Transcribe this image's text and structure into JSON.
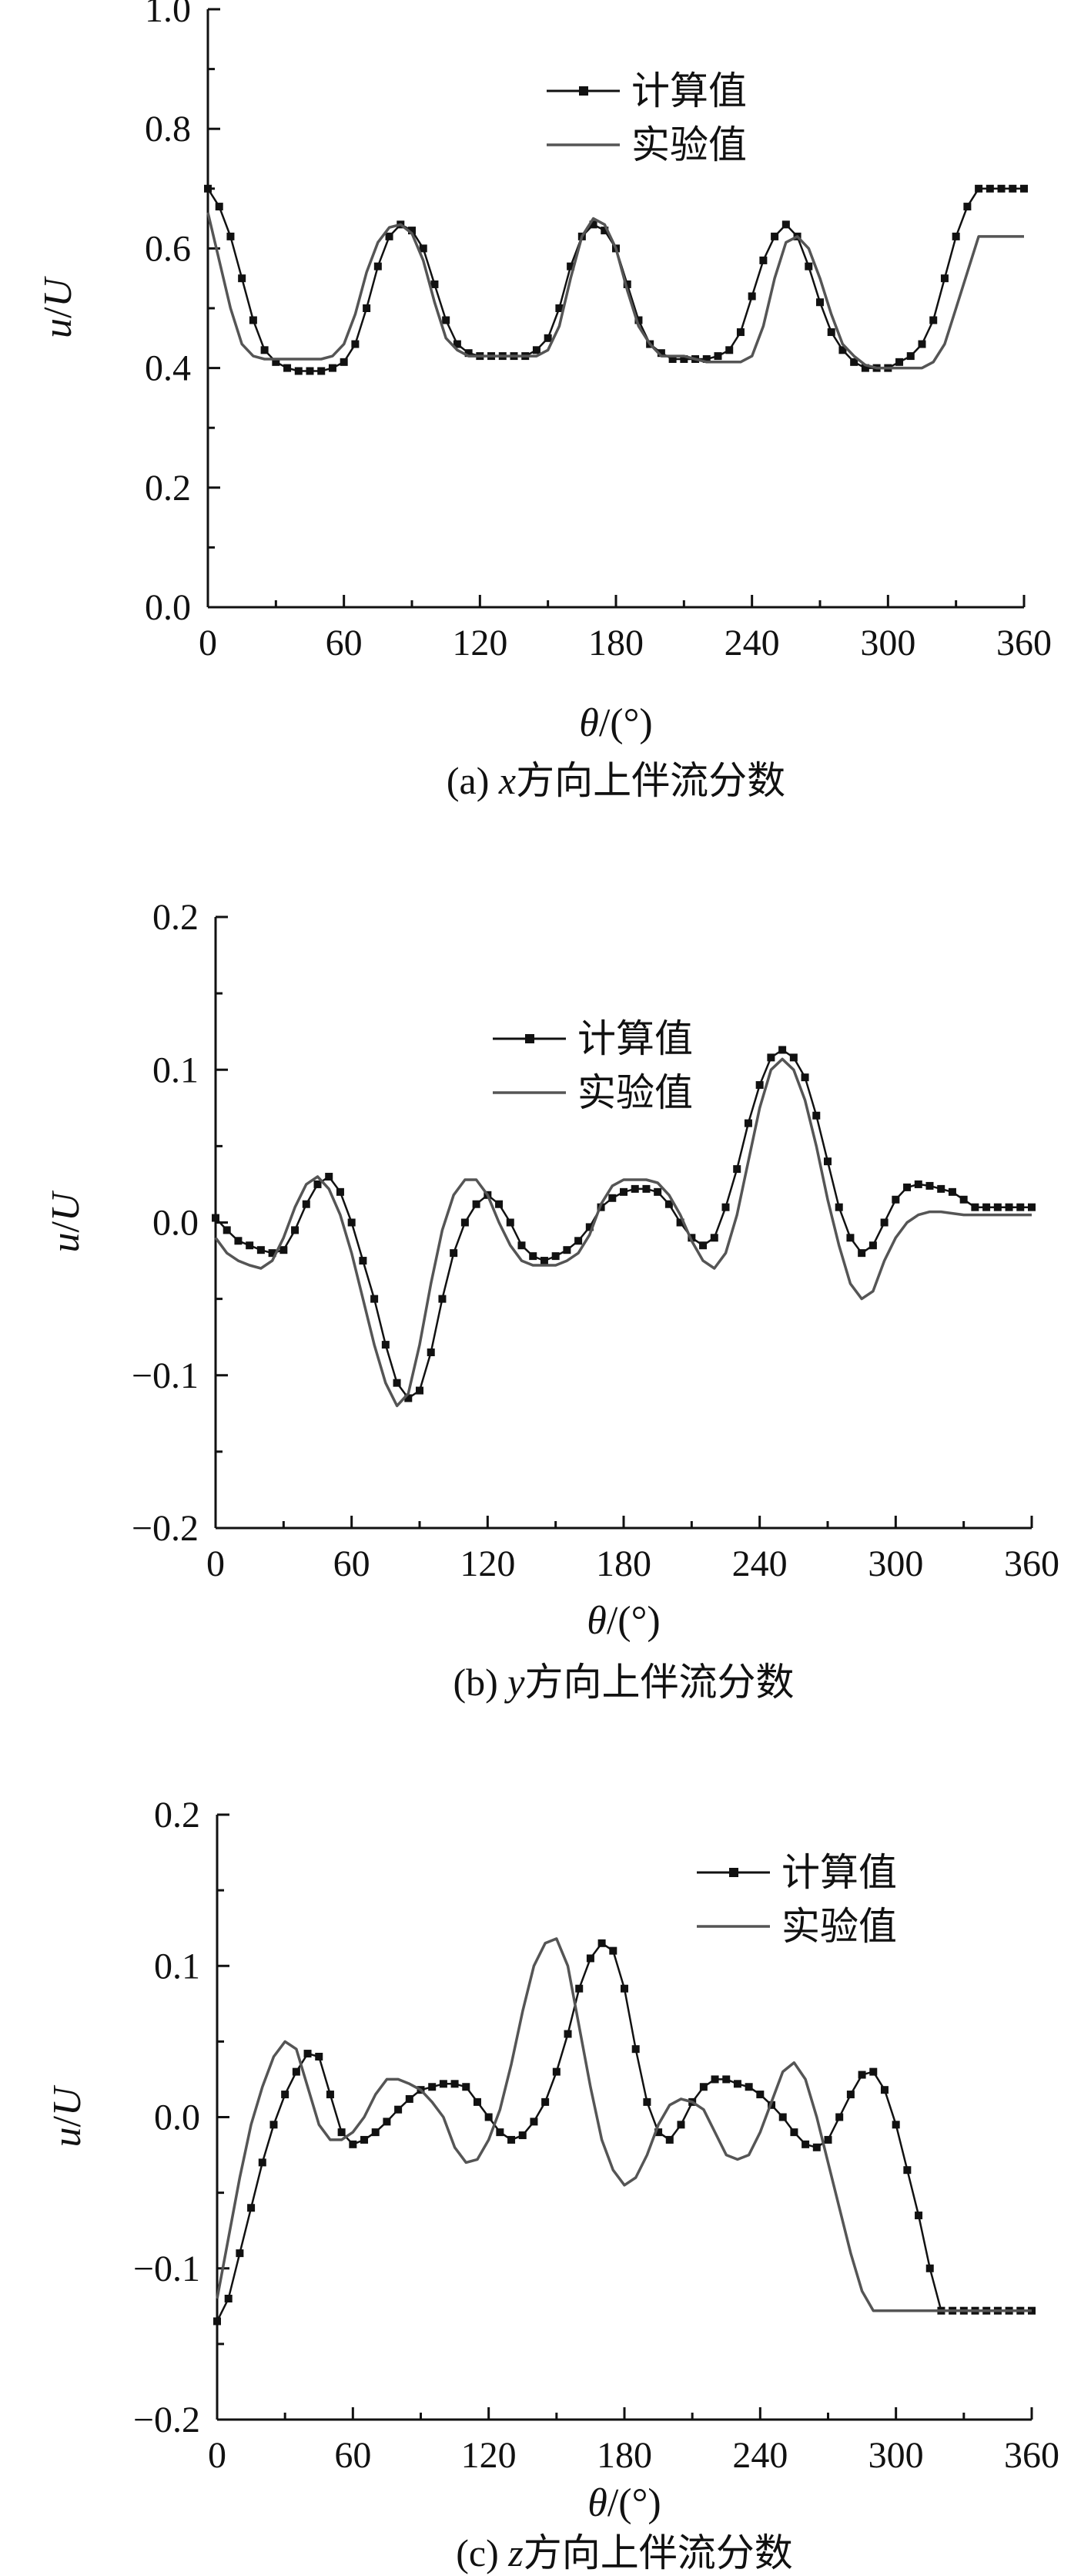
{
  "figure": {
    "background": "#ffffff"
  },
  "chart_data": [
    {
      "type": "line",
      "caption": {
        "label": "(a)",
        "var": "x",
        "text": "方向上伴流分数"
      },
      "xlabel": {
        "sym": "θ",
        "unit": "/(°)"
      },
      "ylabel": {
        "a": "u",
        "sep": "/",
        "b": "U"
      },
      "xlim": [
        0,
        360
      ],
      "ylim": [
        0,
        1.0
      ],
      "xticks": [
        0,
        60,
        120,
        180,
        240,
        300,
        360
      ],
      "yticks": [
        0,
        0.2,
        0.4,
        0.6,
        0.8,
        1.0
      ],
      "ytick_labels": [
        "0.0",
        "0.2",
        "0.4",
        "0.6",
        "0.8",
        "1.0"
      ],
      "legend_position": "top-center",
      "series": [
        {
          "name": "计算值",
          "style": "line-square-markers",
          "color": "#111111",
          "x": [
            0,
            5,
            10,
            15,
            20,
            25,
            30,
            35,
            40,
            45,
            50,
            55,
            60,
            65,
            70,
            75,
            80,
            85,
            90,
            95,
            100,
            105,
            110,
            115,
            120,
            125,
            130,
            135,
            140,
            145,
            150,
            155,
            160,
            165,
            170,
            175,
            180,
            185,
            190,
            195,
            200,
            205,
            210,
            215,
            220,
            225,
            230,
            235,
            240,
            245,
            250,
            255,
            260,
            265,
            270,
            275,
            280,
            285,
            290,
            295,
            300,
            305,
            310,
            315,
            320,
            325,
            330,
            335,
            340,
            345,
            350,
            355,
            360
          ],
          "y": [
            0.7,
            0.67,
            0.62,
            0.55,
            0.48,
            0.43,
            0.41,
            0.4,
            0.395,
            0.395,
            0.395,
            0.4,
            0.41,
            0.44,
            0.5,
            0.57,
            0.62,
            0.64,
            0.63,
            0.6,
            0.54,
            0.48,
            0.44,
            0.425,
            0.42,
            0.42,
            0.42,
            0.42,
            0.42,
            0.43,
            0.45,
            0.5,
            0.57,
            0.62,
            0.64,
            0.63,
            0.6,
            0.54,
            0.48,
            0.44,
            0.425,
            0.415,
            0.415,
            0.415,
            0.415,
            0.42,
            0.43,
            0.46,
            0.52,
            0.58,
            0.62,
            0.64,
            0.62,
            0.57,
            0.51,
            0.46,
            0.43,
            0.41,
            0.4,
            0.4,
            0.4,
            0.41,
            0.42,
            0.44,
            0.48,
            0.55,
            0.62,
            0.67,
            0.7,
            0.7,
            0.7,
            0.7,
            0.7
          ]
        },
        {
          "name": "实验值",
          "style": "line",
          "color": "#555555",
          "x": [
            0,
            5,
            10,
            15,
            20,
            25,
            30,
            35,
            40,
            45,
            50,
            55,
            60,
            65,
            70,
            75,
            80,
            85,
            90,
            95,
            100,
            105,
            110,
            115,
            120,
            125,
            130,
            135,
            140,
            145,
            150,
            155,
            160,
            165,
            170,
            175,
            180,
            185,
            190,
            195,
            200,
            205,
            210,
            215,
            220,
            225,
            230,
            235,
            240,
            245,
            250,
            255,
            260,
            265,
            270,
            275,
            280,
            285,
            290,
            295,
            300,
            305,
            310,
            315,
            320,
            325,
            330,
            335,
            340,
            345,
            350,
            355,
            360
          ],
          "y": [
            0.66,
            0.58,
            0.5,
            0.44,
            0.42,
            0.415,
            0.415,
            0.415,
            0.415,
            0.415,
            0.415,
            0.42,
            0.44,
            0.49,
            0.56,
            0.61,
            0.635,
            0.64,
            0.625,
            0.58,
            0.51,
            0.45,
            0.43,
            0.42,
            0.42,
            0.42,
            0.42,
            0.42,
            0.42,
            0.42,
            0.43,
            0.47,
            0.55,
            0.62,
            0.65,
            0.64,
            0.6,
            0.53,
            0.47,
            0.44,
            0.42,
            0.42,
            0.42,
            0.415,
            0.41,
            0.41,
            0.41,
            0.41,
            0.42,
            0.47,
            0.55,
            0.61,
            0.62,
            0.6,
            0.55,
            0.49,
            0.44,
            0.42,
            0.405,
            0.4,
            0.4,
            0.4,
            0.4,
            0.4,
            0.41,
            0.44,
            0.5,
            0.56,
            0.62,
            0.62,
            0.62,
            0.62,
            0.62
          ]
        }
      ]
    },
    {
      "type": "line",
      "caption": {
        "label": "(b)",
        "var": "y",
        "text": "方向上伴流分数"
      },
      "xlabel": {
        "sym": "θ",
        "unit": "/(°)"
      },
      "ylabel": {
        "a": "u",
        "sep": "/",
        "b": "U"
      },
      "xlim": [
        0,
        360
      ],
      "ylim": [
        -0.2,
        0.2
      ],
      "xticks": [
        0,
        60,
        120,
        180,
        240,
        300,
        360
      ],
      "yticks": [
        -0.2,
        -0.1,
        0,
        0.1,
        0.2
      ],
      "ytick_labels": [
        "−0.2",
        "−0.1",
        "0.0",
        "0.1",
        "0.2"
      ],
      "legend_position": "top-center",
      "series": [
        {
          "name": "计算值",
          "style": "line-square-markers",
          "color": "#111111",
          "x": [
            0,
            5,
            10,
            15,
            20,
            25,
            30,
            35,
            40,
            45,
            50,
            55,
            60,
            65,
            70,
            75,
            80,
            85,
            90,
            95,
            100,
            105,
            110,
            115,
            120,
            125,
            130,
            135,
            140,
            145,
            150,
            155,
            160,
            165,
            170,
            175,
            180,
            185,
            190,
            195,
            200,
            205,
            210,
            215,
            220,
            225,
            230,
            235,
            240,
            245,
            250,
            255,
            260,
            265,
            270,
            275,
            280,
            285,
            290,
            295,
            300,
            305,
            310,
            315,
            320,
            325,
            330,
            335,
            340,
            345,
            350,
            355,
            360
          ],
          "y": [
            0.003,
            -0.005,
            -0.012,
            -0.015,
            -0.018,
            -0.02,
            -0.018,
            -0.005,
            0.012,
            0.025,
            0.03,
            0.02,
            0.0,
            -0.025,
            -0.05,
            -0.08,
            -0.105,
            -0.115,
            -0.11,
            -0.085,
            -0.05,
            -0.02,
            0.0,
            0.012,
            0.018,
            0.012,
            0.0,
            -0.015,
            -0.022,
            -0.025,
            -0.022,
            -0.018,
            -0.012,
            -0.003,
            0.01,
            0.016,
            0.02,
            0.022,
            0.022,
            0.02,
            0.012,
            0.0,
            -0.01,
            -0.015,
            -0.01,
            0.01,
            0.035,
            0.065,
            0.09,
            0.108,
            0.113,
            0.108,
            0.095,
            0.07,
            0.04,
            0.01,
            -0.01,
            -0.02,
            -0.015,
            0.0,
            0.015,
            0.023,
            0.025,
            0.024,
            0.022,
            0.02,
            0.015,
            0.01,
            0.01,
            0.01,
            0.01,
            0.01,
            0.01
          ]
        },
        {
          "name": "实验值",
          "style": "line",
          "color": "#555555",
          "x": [
            0,
            5,
            10,
            15,
            20,
            25,
            30,
            35,
            40,
            45,
            50,
            55,
            60,
            65,
            70,
            75,
            80,
            85,
            90,
            95,
            100,
            105,
            110,
            115,
            120,
            125,
            130,
            135,
            140,
            145,
            150,
            155,
            160,
            165,
            170,
            175,
            180,
            185,
            190,
            195,
            200,
            205,
            210,
            215,
            220,
            225,
            230,
            235,
            240,
            245,
            250,
            255,
            260,
            265,
            270,
            275,
            280,
            285,
            290,
            295,
            300,
            305,
            310,
            315,
            320,
            325,
            330,
            335,
            340,
            345,
            350,
            355,
            360
          ],
          "y": [
            -0.01,
            -0.02,
            -0.025,
            -0.028,
            -0.03,
            -0.025,
            -0.01,
            0.01,
            0.025,
            0.03,
            0.022,
            0.005,
            -0.02,
            -0.05,
            -0.08,
            -0.105,
            -0.12,
            -0.112,
            -0.08,
            -0.04,
            -0.005,
            0.018,
            0.028,
            0.028,
            0.018,
            0.0,
            -0.015,
            -0.025,
            -0.028,
            -0.028,
            -0.028,
            -0.025,
            -0.02,
            -0.008,
            0.012,
            0.024,
            0.028,
            0.028,
            0.028,
            0.026,
            0.018,
            0.005,
            -0.012,
            -0.025,
            -0.03,
            -0.02,
            0.005,
            0.04,
            0.075,
            0.1,
            0.107,
            0.1,
            0.08,
            0.05,
            0.015,
            -0.015,
            -0.04,
            -0.05,
            -0.045,
            -0.025,
            -0.01,
            0.0,
            0.005,
            0.007,
            0.007,
            0.006,
            0.005,
            0.005,
            0.005,
            0.005,
            0.005,
            0.005,
            0.005
          ]
        }
      ]
    },
    {
      "type": "line",
      "caption": {
        "label": "(c)",
        "var": "z",
        "text": "方向上伴流分数"
      },
      "xlabel": {
        "sym": "θ",
        "unit": "/(°)"
      },
      "ylabel": {
        "a": "u",
        "sep": "/",
        "b": "U"
      },
      "xlim": [
        0,
        360
      ],
      "ylim": [
        -0.2,
        0.2
      ],
      "xticks": [
        0,
        60,
        120,
        180,
        240,
        300,
        360
      ],
      "yticks": [
        -0.2,
        -0.1,
        0,
        0.1,
        0.2
      ],
      "ytick_labels": [
        "−0.2",
        "−0.1",
        "0.0",
        "0.1",
        "0.2"
      ],
      "legend_position": "top-right",
      "series": [
        {
          "name": "计算值",
          "style": "line-square-markers",
          "color": "#111111",
          "x": [
            0,
            5,
            10,
            15,
            20,
            25,
            30,
            35,
            40,
            45,
            50,
            55,
            60,
            65,
            70,
            75,
            80,
            85,
            90,
            95,
            100,
            105,
            110,
            115,
            120,
            125,
            130,
            135,
            140,
            145,
            150,
            155,
            160,
            165,
            170,
            175,
            180,
            185,
            190,
            195,
            200,
            205,
            210,
            215,
            220,
            225,
            230,
            235,
            240,
            245,
            250,
            255,
            260,
            265,
            270,
            275,
            280,
            285,
            290,
            295,
            300,
            305,
            310,
            315,
            320,
            325,
            330,
            335,
            340,
            345,
            350,
            355,
            360
          ],
          "y": [
            -0.135,
            -0.12,
            -0.09,
            -0.06,
            -0.03,
            -0.005,
            0.015,
            0.03,
            0.042,
            0.04,
            0.015,
            -0.01,
            -0.018,
            -0.015,
            -0.01,
            -0.003,
            0.005,
            0.012,
            0.018,
            0.02,
            0.022,
            0.022,
            0.02,
            0.01,
            0.0,
            -0.01,
            -0.015,
            -0.012,
            -0.003,
            0.01,
            0.03,
            0.055,
            0.085,
            0.105,
            0.115,
            0.11,
            0.085,
            0.045,
            0.01,
            -0.01,
            -0.015,
            -0.005,
            0.01,
            0.02,
            0.025,
            0.025,
            0.022,
            0.02,
            0.015,
            0.008,
            0.0,
            -0.01,
            -0.018,
            -0.02,
            -0.015,
            0.0,
            0.015,
            0.028,
            0.03,
            0.018,
            -0.005,
            -0.035,
            -0.065,
            -0.1,
            -0.128,
            -0.128,
            -0.128,
            -0.128,
            -0.128,
            -0.128,
            -0.128,
            -0.128,
            -0.128
          ]
        },
        {
          "name": "实验值",
          "style": "line",
          "color": "#555555",
          "x": [
            0,
            5,
            10,
            15,
            20,
            25,
            30,
            35,
            40,
            45,
            50,
            55,
            60,
            65,
            70,
            75,
            80,
            85,
            90,
            95,
            100,
            105,
            110,
            115,
            120,
            125,
            130,
            135,
            140,
            145,
            150,
            155,
            160,
            165,
            170,
            175,
            180,
            185,
            190,
            195,
            200,
            205,
            210,
            215,
            220,
            225,
            230,
            235,
            240,
            245,
            250,
            255,
            260,
            265,
            270,
            275,
            280,
            285,
            290,
            295,
            300,
            305,
            310,
            315,
            320,
            325,
            330,
            335,
            340,
            345,
            350,
            355,
            360
          ],
          "y": [
            -0.12,
            -0.08,
            -0.04,
            -0.005,
            0.02,
            0.04,
            0.05,
            0.045,
            0.02,
            -0.005,
            -0.015,
            -0.015,
            -0.01,
            0.0,
            0.015,
            0.025,
            0.025,
            0.022,
            0.018,
            0.01,
            0.0,
            -0.02,
            -0.03,
            -0.028,
            -0.015,
            0.005,
            0.035,
            0.07,
            0.1,
            0.115,
            0.118,
            0.1,
            0.06,
            0.02,
            -0.015,
            -0.035,
            -0.045,
            -0.04,
            -0.025,
            -0.005,
            0.008,
            0.012,
            0.01,
            0.005,
            -0.01,
            -0.025,
            -0.028,
            -0.025,
            -0.01,
            0.01,
            0.03,
            0.036,
            0.025,
            0.0,
            -0.03,
            -0.06,
            -0.09,
            -0.115,
            -0.128,
            -0.128,
            -0.128,
            -0.128,
            -0.128,
            -0.128,
            -0.128,
            -0.128,
            -0.128,
            -0.128,
            -0.128,
            -0.128,
            -0.128,
            -0.128,
            -0.128
          ]
        }
      ]
    }
  ]
}
